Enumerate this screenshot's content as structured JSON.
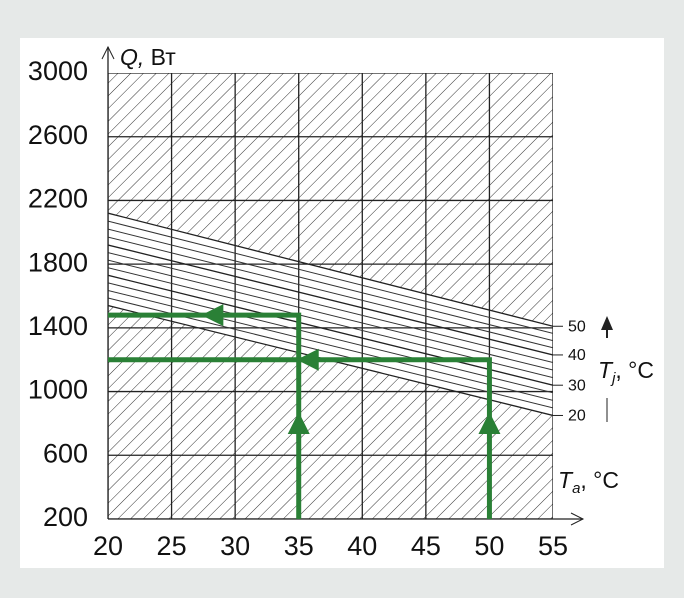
{
  "chart_data": {
    "type": "nomogram",
    "y_label": {
      "symbol": "Q,",
      "unit": " Вт"
    },
    "x_label": {
      "symbol": "T",
      "subscript": "a",
      "unit": ", °C"
    },
    "z_label": {
      "symbol": "T",
      "subscript": "j",
      "unit": ", °C"
    },
    "xlim": [
      20,
      55
    ],
    "xticks": [
      20,
      25,
      30,
      35,
      40,
      45,
      50,
      55
    ],
    "ylim": [
      200,
      3000
    ],
    "yticks": [
      200,
      600,
      1000,
      1400,
      1800,
      2200,
      2600,
      3000
    ],
    "grid": true,
    "tj_lines": [
      {
        "tj": 50,
        "q_at_xmin": 2120,
        "q_at_xmax": 1410
      },
      {
        "tj": 40,
        "q_at_xmin": 1920,
        "q_at_xmax": 1230
      },
      {
        "tj": 30,
        "q_at_xmin": 1730,
        "q_at_xmax": 1040
      },
      {
        "tj": 20,
        "q_at_xmin": 1540,
        "q_at_xmax": 850
      }
    ],
    "readings": [
      {
        "ta": 35,
        "q": 1480
      },
      {
        "ta": 50,
        "q": 1200
      }
    ],
    "color": "#2a8036"
  }
}
